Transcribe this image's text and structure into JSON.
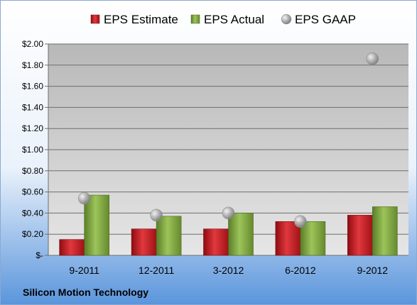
{
  "company": "Silicon Motion Technology",
  "colors": {
    "estimate": "#c0161c",
    "actual": "#7aa23a",
    "gaap": "#a6a6a6",
    "plot_bg_top": "#bcbcbc",
    "plot_bg_bottom": "#e4e4e4",
    "outer_bg_top": "#ffffff",
    "outer_bg_bottom": "#5a95dc"
  },
  "chart_data": {
    "type": "bar",
    "categories": [
      "9-2011",
      "12-2011",
      "3-2012",
      "6-2012",
      "9-2012"
    ],
    "series": [
      {
        "name": "EPS Estimate",
        "kind": "bar",
        "values": [
          0.15,
          0.25,
          0.25,
          0.32,
          0.38
        ]
      },
      {
        "name": "EPS Actual",
        "kind": "bar",
        "values": [
          0.57,
          0.37,
          0.4,
          0.32,
          0.46
        ]
      },
      {
        "name": "EPS GAAP",
        "kind": "point",
        "values": [
          0.54,
          0.38,
          0.4,
          0.32,
          1.86
        ]
      }
    ],
    "ylim": [
      0,
      2.0
    ],
    "yticks": [
      "$-",
      "$0.20",
      "$0.40",
      "$0.60",
      "$0.80",
      "$1.00",
      "$1.20",
      "$1.40",
      "$1.60",
      "$1.80",
      "$2.00"
    ],
    "ytick_values": [
      0,
      0.2,
      0.4,
      0.6,
      0.8,
      1.0,
      1.2,
      1.4,
      1.6,
      1.8,
      2.0
    ],
    "grid": true,
    "legend_position": "top"
  }
}
